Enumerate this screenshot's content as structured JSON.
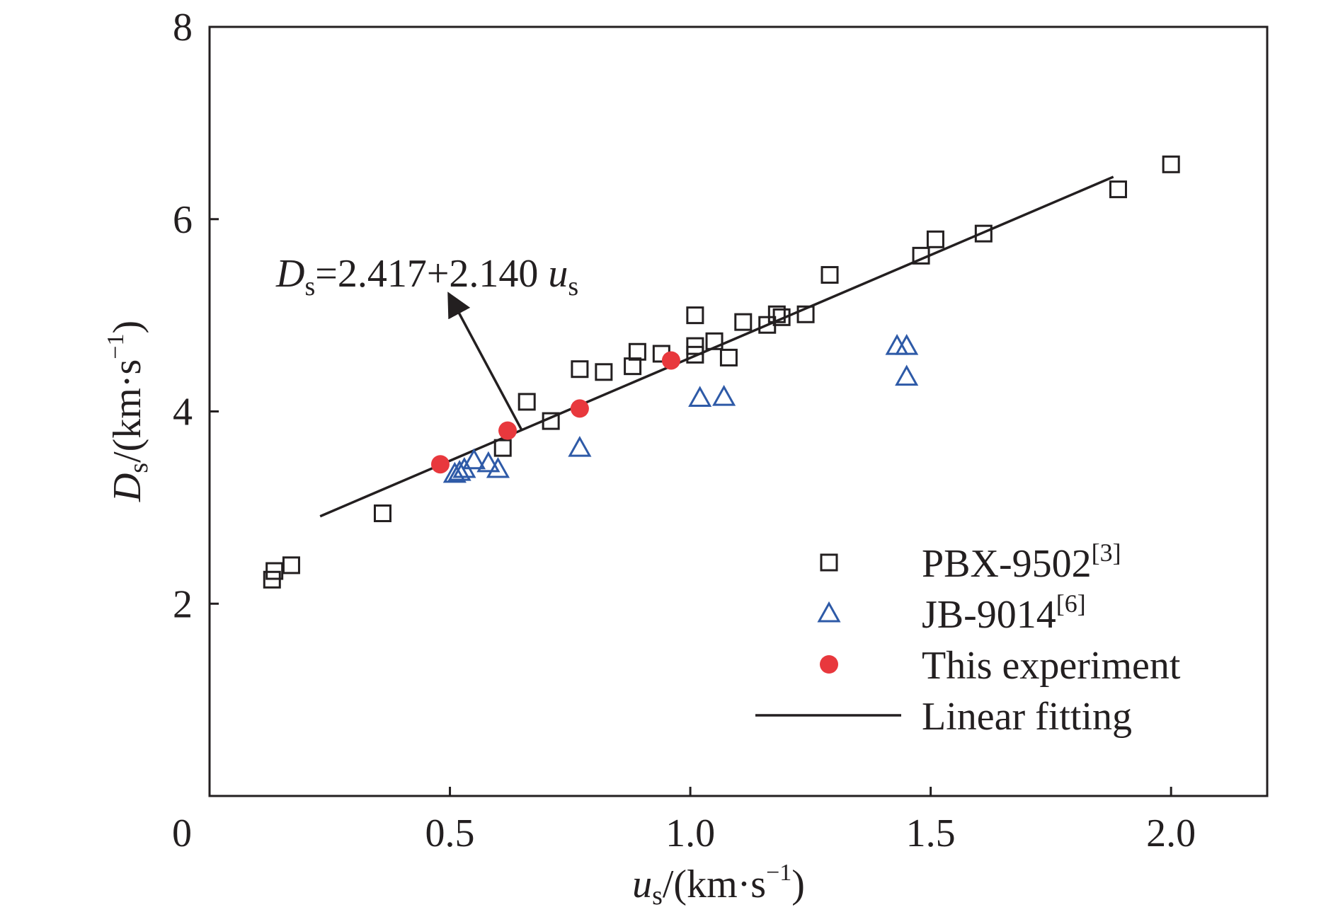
{
  "chart_data": {
    "type": "scatter",
    "xlabel": {
      "base": "u",
      "sub": "s",
      "unit": "/(km·s",
      "sup": "−1",
      "close": ")"
    },
    "ylabel": {
      "base": "D",
      "sub": "s",
      "unit": "/(km·s",
      "sup": "−1",
      "close": ")"
    },
    "xlim": [
      0,
      2.2
    ],
    "ylim": [
      0,
      8
    ],
    "xticks": [
      0,
      0.5,
      1.0,
      1.5,
      2.0
    ],
    "xtick_labels": [
      "0",
      "0.5",
      "1.0",
      "1.5",
      "2.0"
    ],
    "yticks": [
      2,
      4,
      6,
      8
    ],
    "ytick_labels": [
      "2",
      "4",
      "6",
      "8"
    ],
    "grid": false,
    "legend_position": "bottom-right",
    "series": [
      {
        "name": "PBX-9502",
        "ref": "[3]",
        "marker": "square",
        "color": "#231f20",
        "points": [
          [
            0.13,
            2.25
          ],
          [
            0.135,
            2.34
          ],
          [
            0.17,
            2.4
          ],
          [
            0.36,
            2.94
          ],
          [
            0.61,
            3.62
          ],
          [
            0.66,
            4.1
          ],
          [
            0.71,
            3.9
          ],
          [
            0.77,
            4.44
          ],
          [
            0.82,
            4.41
          ],
          [
            0.88,
            4.47
          ],
          [
            0.89,
            4.62
          ],
          [
            0.94,
            4.6
          ],
          [
            1.01,
            4.59
          ],
          [
            1.01,
            4.68
          ],
          [
            1.01,
            5.0
          ],
          [
            1.05,
            4.73
          ],
          [
            1.08,
            4.56
          ],
          [
            1.11,
            4.93
          ],
          [
            1.16,
            4.9
          ],
          [
            1.18,
            5.01
          ],
          [
            1.19,
            4.98
          ],
          [
            1.24,
            5.01
          ],
          [
            1.29,
            5.42
          ],
          [
            1.48,
            5.62
          ],
          [
            1.51,
            5.79
          ],
          [
            1.61,
            5.85
          ],
          [
            1.89,
            6.31
          ],
          [
            2.0,
            6.57
          ]
        ]
      },
      {
        "name": "JB-9014",
        "ref": "[6]",
        "marker": "triangle",
        "color": "#2e5aa7",
        "points": [
          [
            0.51,
            3.35
          ],
          [
            0.52,
            3.37
          ],
          [
            0.53,
            3.4
          ],
          [
            0.55,
            3.49
          ],
          [
            0.58,
            3.46
          ],
          [
            0.6,
            3.4
          ],
          [
            0.77,
            3.62
          ],
          [
            1.02,
            4.14
          ],
          [
            1.07,
            4.15
          ],
          [
            1.43,
            4.68
          ],
          [
            1.45,
            4.68
          ],
          [
            1.45,
            4.36
          ]
        ]
      },
      {
        "name": "This experiment",
        "ref": "",
        "marker": "circle",
        "color": "#e8383d",
        "points": [
          [
            0.48,
            3.45
          ],
          [
            0.62,
            3.8
          ],
          [
            0.77,
            4.03
          ],
          [
            0.96,
            4.53
          ]
        ]
      },
      {
        "name": "Linear fitting",
        "ref": "",
        "marker": "line",
        "color": "#231f20",
        "fit": {
          "intercept": 2.417,
          "slope": 2.14,
          "x_range": [
            0.23,
            1.88
          ]
        }
      }
    ],
    "annotation": {
      "D": "D",
      "s1": "s",
      "eq": "=2.417+2.140 ",
      "u": "u",
      "s2": "s",
      "arrow_from": [
        0.65,
        3.8
      ],
      "arrow_to": [
        0.5,
        5.2
      ]
    }
  }
}
